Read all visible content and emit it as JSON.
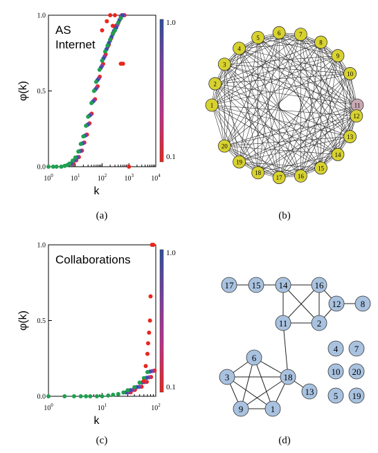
{
  "panel_labels": [
    "(a)",
    "(b)",
    "(c)",
    "(d)"
  ],
  "colorbar": {
    "top_label": "1.0",
    "bottom_label": "0.1",
    "colors": [
      "#2e4fa0",
      "#7a3fa0",
      "#c0308a",
      "#e8261e"
    ]
  },
  "series_colors": {
    "low": "#e8261e",
    "mid": "#8a3fa8",
    "high": "#3b4fa8",
    "green": "#1fa050"
  },
  "chart_data": [
    {
      "type": "scatter",
      "panel": "(a)",
      "annotation": [
        "AS",
        "Internet"
      ],
      "xlabel": "k",
      "ylabel": "φ(k)",
      "xscale": "log",
      "xlim": [
        1,
        10000
      ],
      "ylim": [
        0,
        1
      ],
      "x_tick_labels": [
        {
          "base": "10",
          "exp": "0"
        },
        {
          "base": "10",
          "exp": "1"
        },
        {
          "base": "10",
          "exp": "2"
        },
        {
          "base": "10",
          "exp": "3"
        },
        {
          "base": "10",
          "exp": "4"
        }
      ],
      "y_tick_labels": [
        "0.0",
        "0.5",
        "1.0"
      ],
      "green_points": [
        [
          1,
          0.0
        ],
        [
          1.5,
          0.0
        ],
        [
          2,
          0.0
        ],
        [
          3,
          0.0
        ],
        [
          4,
          0.005
        ],
        [
          5,
          0.01
        ],
        [
          6,
          0.02
        ],
        [
          8,
          0.04
        ],
        [
          10,
          0.06
        ],
        [
          13,
          0.1
        ],
        [
          16,
          0.15
        ],
        [
          20,
          0.2
        ],
        [
          25,
          0.27
        ],
        [
          30,
          0.33
        ],
        [
          40,
          0.42
        ],
        [
          50,
          0.5
        ],
        [
          60,
          0.56
        ],
        [
          80,
          0.64
        ],
        [
          100,
          0.7
        ],
        [
          130,
          0.76
        ],
        [
          160,
          0.8
        ],
        [
          200,
          0.84
        ],
        [
          250,
          0.88
        ],
        [
          300,
          0.9
        ],
        [
          400,
          0.95
        ],
        [
          500,
          0.98
        ]
      ],
      "red_points": [
        [
          100,
          0.9
        ],
        [
          150,
          0.96
        ],
        [
          200,
          1.0
        ],
        [
          250,
          0.93
        ],
        [
          300,
          1.0
        ],
        [
          500,
          0.68
        ],
        [
          600,
          0.68
        ],
        [
          1000,
          0.0
        ]
      ],
      "legend": "right-colorbar"
    },
    {
      "type": "scatter",
      "panel": "(c)",
      "annotation": [
        "Collaborations"
      ],
      "xlabel": "k",
      "ylabel": "φ(k)",
      "xscale": "log",
      "xlim": [
        1,
        100
      ],
      "ylim": [
        0,
        1
      ],
      "x_tick_labels": [
        {
          "base": "10",
          "exp": "0"
        },
        {
          "base": "10",
          "exp": "1"
        },
        {
          "base": "10",
          "exp": "2"
        }
      ],
      "y_tick_labels": [
        "0.0",
        "0.5",
        "1.0"
      ],
      "green_points": [
        [
          1,
          0.0
        ],
        [
          2,
          0.0
        ],
        [
          3,
          0.0
        ],
        [
          4,
          0.0
        ],
        [
          5,
          0.0
        ],
        [
          6,
          0.0
        ],
        [
          8,
          0.0
        ],
        [
          10,
          0.0
        ],
        [
          13,
          0.005
        ],
        [
          16,
          0.01
        ],
        [
          20,
          0.015
        ],
        [
          25,
          0.025
        ],
        [
          30,
          0.04
        ],
        [
          40,
          0.06
        ],
        [
          50,
          0.09
        ],
        [
          60,
          0.12
        ],
        [
          70,
          0.16
        ]
      ],
      "red_points": [
        [
          60,
          0.1
        ],
        [
          65,
          0.2
        ],
        [
          70,
          0.28
        ],
        [
          72,
          0.35
        ],
        [
          75,
          0.42
        ],
        [
          78,
          0.5
        ],
        [
          80,
          0.66
        ],
        [
          85,
          1.0
        ],
        [
          90,
          1.0
        ]
      ],
      "legend": "right-colorbar"
    },
    {
      "type": "network",
      "panel": "(b)",
      "layout": "circle",
      "nodes": [
        "1",
        "2",
        "3",
        "4",
        "5",
        "6",
        "7",
        "8",
        "9",
        "10",
        "11",
        "12",
        "13",
        "14",
        "15",
        "16",
        "17",
        "18",
        "19",
        "20"
      ],
      "node_colors": {
        "default": "#d8d230",
        "highlight": "#c9a9b2"
      },
      "highlight_node": "11"
    },
    {
      "type": "network",
      "panel": "(d)",
      "nodes": [
        "17",
        "15",
        "14",
        "16",
        "12",
        "8",
        "11",
        "2",
        "6",
        "18",
        "3",
        "13",
        "9",
        "1",
        "4",
        "7",
        "10",
        "20",
        "5",
        "19"
      ],
      "edges": [
        [
          "17",
          "15"
        ],
        [
          "15",
          "14"
        ],
        [
          "14",
          "16"
        ],
        [
          "14",
          "11"
        ],
        [
          "14",
          "2"
        ],
        [
          "16",
          "11"
        ],
        [
          "16",
          "2"
        ],
        [
          "16",
          "12"
        ],
        [
          "12",
          "2"
        ],
        [
          "12",
          "8"
        ],
        [
          "11",
          "2"
        ],
        [
          "11",
          "18"
        ],
        [
          "6",
          "3"
        ],
        [
          "6",
          "18"
        ],
        [
          "6",
          "9"
        ],
        [
          "6",
          "1"
        ],
        [
          "3",
          "18"
        ],
        [
          "3",
          "9"
        ],
        [
          "3",
          "1"
        ],
        [
          "18",
          "9"
        ],
        [
          "18",
          "1"
        ],
        [
          "18",
          "13"
        ],
        [
          "9",
          "1"
        ]
      ],
      "node_color": "#a9c2e0"
    }
  ]
}
